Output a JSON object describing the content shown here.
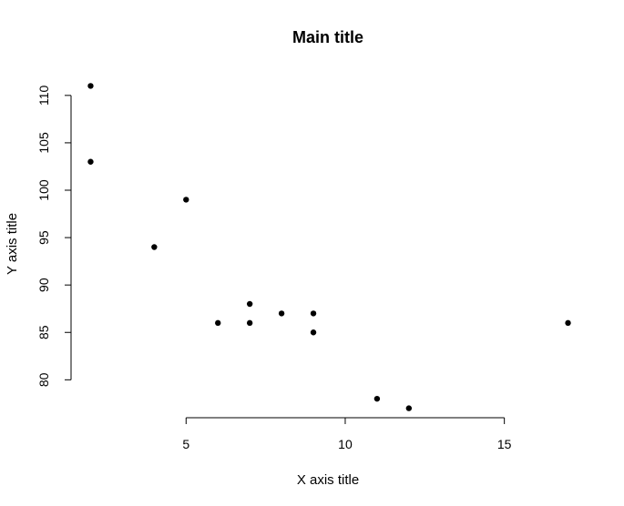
{
  "chart_data": {
    "type": "scatter",
    "title": "Main title",
    "xlabel": "X axis title",
    "ylabel": "Y axis title",
    "xlim": [
      1.5,
      17.5
    ],
    "ylim": [
      76,
      112
    ],
    "x_ticks": [
      5,
      10,
      15
    ],
    "y_ticks": [
      80,
      85,
      90,
      95,
      100,
      105,
      110
    ],
    "x_tick_labels": [
      "5",
      "10",
      "15"
    ],
    "y_tick_labels": [
      "80",
      "85",
      "90",
      "95",
      "100",
      "105",
      "110"
    ],
    "grid": false,
    "legend": "none",
    "point_color": "#000000",
    "points": [
      {
        "x": 2,
        "y": 111
      },
      {
        "x": 2,
        "y": 103
      },
      {
        "x": 4,
        "y": 94
      },
      {
        "x": 5,
        "y": 99
      },
      {
        "x": 6,
        "y": 86
      },
      {
        "x": 7,
        "y": 88
      },
      {
        "x": 7,
        "y": 86
      },
      {
        "x": 8,
        "y": 87
      },
      {
        "x": 9,
        "y": 87
      },
      {
        "x": 9,
        "y": 85
      },
      {
        "x": 11,
        "y": 78
      },
      {
        "x": 12,
        "y": 77
      },
      {
        "x": 17,
        "y": 86
      }
    ]
  }
}
